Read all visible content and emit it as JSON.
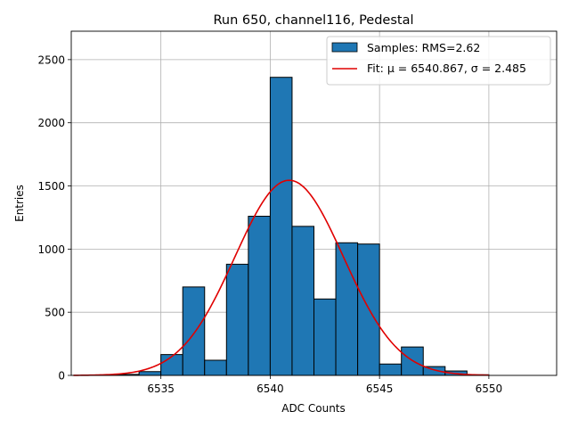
{
  "chart_data": {
    "type": "bar",
    "title": "Run 650, channel116, Pedestal",
    "xlabel": "ADC Counts",
    "ylabel": "Entries",
    "xlim": [
      6530.9,
      6553.1
    ],
    "ylim": [
      0,
      2725
    ],
    "x_ticks": [
      6535,
      6540,
      6545,
      6550
    ],
    "y_ticks": [
      0,
      500,
      1000,
      1500,
      2000,
      2500
    ],
    "grid": true,
    "legend_position": "top-right",
    "bar_color": "#1f77b4",
    "bar_edge_color": "#000000",
    "bins": [
      {
        "left": 6532,
        "right": 6533,
        "value": 3
      },
      {
        "left": 6533,
        "right": 6534,
        "value": 8
      },
      {
        "left": 6534,
        "right": 6535,
        "value": 30
      },
      {
        "left": 6535,
        "right": 6536,
        "value": 165
      },
      {
        "left": 6536,
        "right": 6537,
        "value": 700
      },
      {
        "left": 6537,
        "right": 6538,
        "value": 120
      },
      {
        "left": 6538,
        "right": 6539,
        "value": 880
      },
      {
        "left": 6539,
        "right": 6540,
        "value": 1260
      },
      {
        "left": 6540,
        "right": 6541,
        "value": 2360
      },
      {
        "left": 6541,
        "right": 6542,
        "value": 1180
      },
      {
        "left": 6542,
        "right": 6543,
        "value": 605
      },
      {
        "left": 6543,
        "right": 6544,
        "value": 1050
      },
      {
        "left": 6544,
        "right": 6545,
        "value": 1040
      },
      {
        "left": 6545,
        "right": 6546,
        "value": 90
      },
      {
        "left": 6546,
        "right": 6547,
        "value": 225
      },
      {
        "left": 6547,
        "right": 6548,
        "value": 70
      },
      {
        "left": 6548,
        "right": 6549,
        "value": 35
      },
      {
        "left": 6549,
        "right": 6550,
        "value": 5
      }
    ],
    "fit": {
      "type": "gaussian",
      "mu": 6540.867,
      "sigma": 2.485,
      "amplitude": 1545,
      "x_range": [
        6531,
        6550
      ],
      "color": "#e00000"
    },
    "legend": [
      {
        "label": "Samples: RMS=2.62",
        "kind": "patch"
      },
      {
        "label": "Fit: μ = 6540.867, σ = 2.485",
        "kind": "line"
      }
    ]
  }
}
